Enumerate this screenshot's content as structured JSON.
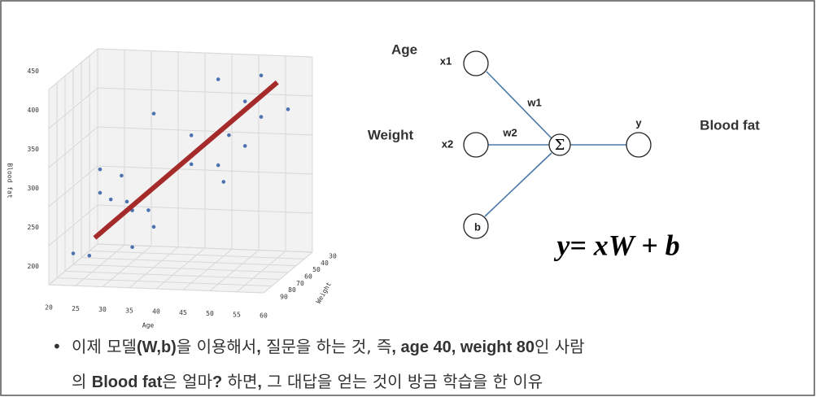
{
  "chart_data": {
    "type": "scatter3d",
    "xlabel": "Age",
    "ylabel": "Weight",
    "zlabel": "Blood fat",
    "xlim": [
      20,
      60
    ],
    "ylim": [
      30,
      90
    ],
    "zlim": [
      200,
      450
    ],
    "xticks": [
      20,
      25,
      30,
      35,
      40,
      45,
      50,
      55,
      60
    ],
    "yticks": [
      30,
      40,
      50,
      60,
      70,
      80,
      90
    ],
    "zticks": [
      200,
      250,
      300,
      350,
      400,
      450
    ],
    "color": "#4c72b0",
    "x": [
      20,
      23,
      25,
      25,
      27,
      29,
      30,
      31,
      31,
      34,
      35,
      35,
      42,
      42,
      47,
      47,
      48,
      49,
      52,
      52,
      55,
      55,
      60
    ],
    "y": [
      60,
      60,
      60,
      60,
      60,
      60,
      60,
      60,
      60,
      60,
      60,
      60,
      60,
      60,
      60,
      60,
      60,
      60,
      60,
      60,
      60,
      60,
      60
    ],
    "z": [
      214,
      212,
      323,
      293,
      285,
      316,
      283,
      272,
      225,
      273,
      397,
      252,
      334,
      371,
      334,
      444,
      313,
      373,
      360,
      417,
      398,
      451,
      409
    ],
    "fit_line": {
      "x": [
        24,
        58
      ],
      "y": [
        60,
        60
      ],
      "z": [
        235,
        443
      ],
      "color": "#a52a2a"
    }
  },
  "diagram": {
    "inputs": [
      "x1",
      "x2",
      "b"
    ],
    "input_names": [
      "Age",
      "Weight"
    ],
    "weights": [
      "w1",
      "w2"
    ],
    "sum": "Σ",
    "output": "y",
    "output_name": "Blood fat",
    "equation": "y= xW + b"
  },
  "bullet": {
    "lines": [
      [
        {
          "text": "이제 모델",
          "bold": false
        },
        {
          "text": "(W,b)",
          "bold": true
        },
        {
          "text": "을 이용해서",
          "bold": false
        },
        {
          "text": ",",
          "bold": true
        },
        {
          "text": " 질문을 하는 것, 즉",
          "bold": false
        },
        {
          "text": ", age 40, weight 80",
          "bold": true
        },
        {
          "text": "인 사람",
          "bold": false
        }
      ],
      [
        {
          "text": "의 ",
          "bold": false
        },
        {
          "text": "Blood fat",
          "bold": true
        },
        {
          "text": "은 얼마",
          "bold": false
        },
        {
          "text": "?",
          "bold": true
        },
        {
          "text": " 하면",
          "bold": false
        },
        {
          "text": ",",
          "bold": true
        },
        {
          "text": " 그 대답을 얻는 것이 방금 학습을 한 이유",
          "bold": false
        }
      ]
    ]
  }
}
